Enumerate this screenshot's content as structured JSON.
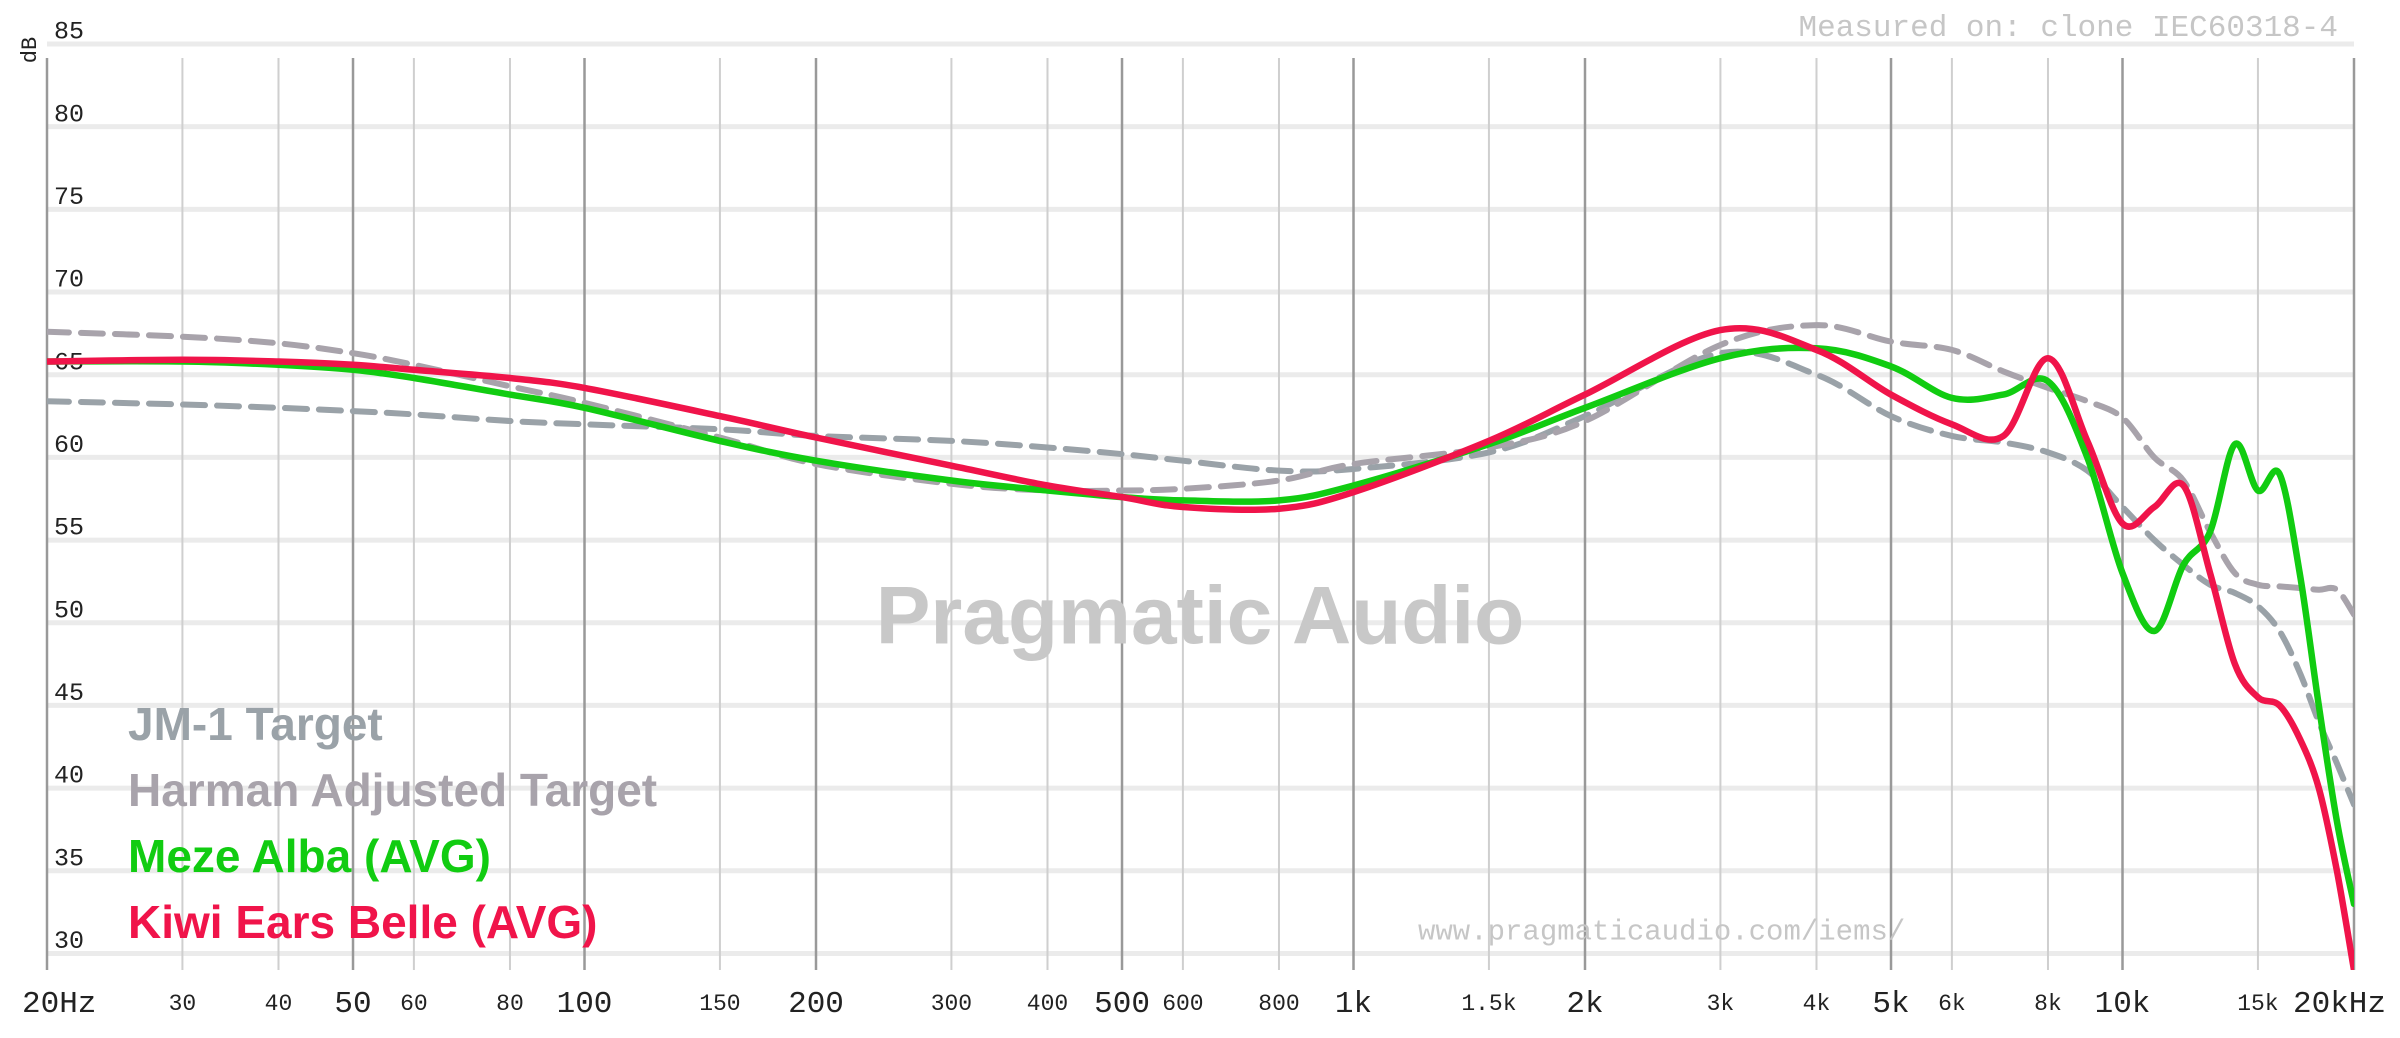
{
  "chart_data": {
    "type": "line",
    "y_label": "dB",
    "measurement_note": "Measured on: clone IEC60318-4",
    "watermark": "Pragmatic Audio",
    "url": "www.pragmaticaudio.com/iems/",
    "log_x": true,
    "grid": true,
    "legend": "lower left",
    "xlim": [
      20,
      20000
    ],
    "ylim": [
      29,
      85
    ],
    "xticks": [
      {
        "value": 20,
        "label": "20Hz"
      },
      30,
      40,
      50,
      60,
      80,
      100,
      150,
      200,
      300,
      400,
      500,
      600,
      800,
      {
        "value": 1000,
        "label": "1k"
      },
      {
        "value": 1500,
        "label": "1.5k"
      },
      {
        "value": 2000,
        "label": "2k"
      },
      {
        "value": 3000,
        "label": "3k"
      },
      {
        "value": 4000,
        "label": "4k"
      },
      {
        "value": 5000,
        "label": "5k"
      },
      {
        "value": 6000,
        "label": "6k"
      },
      {
        "value": 8000,
        "label": "8k"
      },
      {
        "value": 10000,
        "label": "10k"
      },
      {
        "value": 15000,
        "label": "15k"
      },
      {
        "value": 20000,
        "label": "20kHz"
      }
    ],
    "yticks": [
      30,
      35,
      40,
      45,
      50,
      55,
      60,
      65,
      70,
      75,
      80,
      85
    ],
    "x": [
      20,
      30,
      40,
      50,
      60,
      80,
      100,
      150,
      200,
      300,
      400,
      500,
      600,
      800,
      1000,
      1500,
      2000,
      3000,
      4000,
      5000,
      6000,
      7000,
      8000,
      9000,
      10000,
      11000,
      12000,
      13000,
      14000,
      15000,
      16000,
      17000,
      18000,
      19000,
      20000
    ],
    "series": [
      {
        "name": "JM-1 Target",
        "color": "#9aa2a8",
        "dashed": true,
        "values": [
          63.4,
          63.2,
          63.0,
          62.8,
          62.6,
          62.2,
          62.0,
          61.7,
          61.3,
          61.0,
          60.6,
          60.2,
          59.8,
          59.2,
          59.3,
          60.3,
          62.5,
          66.3,
          65.0,
          62.5,
          61.3,
          60.9,
          60.3,
          59.2,
          57.0,
          55.0,
          53.5,
          52.3,
          51.8,
          51.0,
          49.5,
          47.0,
          44.0,
          41.5,
          39.0
        ]
      },
      {
        "name": "Harman Adjusted Target",
        "color": "#a8a3ab",
        "dashed": true,
        "values": [
          67.6,
          67.3,
          66.9,
          66.3,
          65.6,
          64.3,
          63.3,
          61.2,
          59.6,
          58.4,
          58.0,
          58.0,
          58.1,
          58.6,
          59.6,
          60.6,
          62.2,
          66.8,
          68.0,
          67.0,
          66.5,
          65.2,
          64.2,
          63.4,
          62.4,
          60.0,
          58.6,
          55.5,
          53.0,
          52.3,
          52.2,
          52.1,
          52.0,
          52.0,
          50.5
        ]
      },
      {
        "name": "Meze Alba (AVG)",
        "color": "#11cc11",
        "dashed": false,
        "values": [
          65.8,
          65.8,
          65.6,
          65.3,
          64.8,
          63.8,
          63.0,
          61.0,
          59.8,
          58.6,
          58.0,
          57.6,
          57.4,
          57.4,
          58.3,
          60.8,
          63.0,
          66.0,
          66.6,
          65.5,
          63.6,
          63.8,
          64.6,
          60.0,
          53.0,
          49.5,
          53.5,
          55.5,
          60.8,
          58.0,
          59.0,
          53.0,
          45.0,
          38.0,
          33.0
        ]
      },
      {
        "name": "Kiwi Ears Belle (AVG)",
        "color": "#f0144a",
        "dashed": false,
        "values": [
          65.8,
          65.9,
          65.8,
          65.6,
          65.3,
          64.8,
          64.2,
          62.5,
          61.2,
          59.5,
          58.3,
          57.6,
          57.0,
          56.9,
          57.9,
          61.0,
          63.8,
          67.7,
          66.5,
          63.8,
          62.0,
          61.3,
          66.0,
          61.0,
          56.0,
          57.0,
          58.3,
          53.0,
          47.5,
          45.5,
          45.0,
          43.0,
          40.0,
          35.0,
          29.0
        ]
      }
    ]
  }
}
